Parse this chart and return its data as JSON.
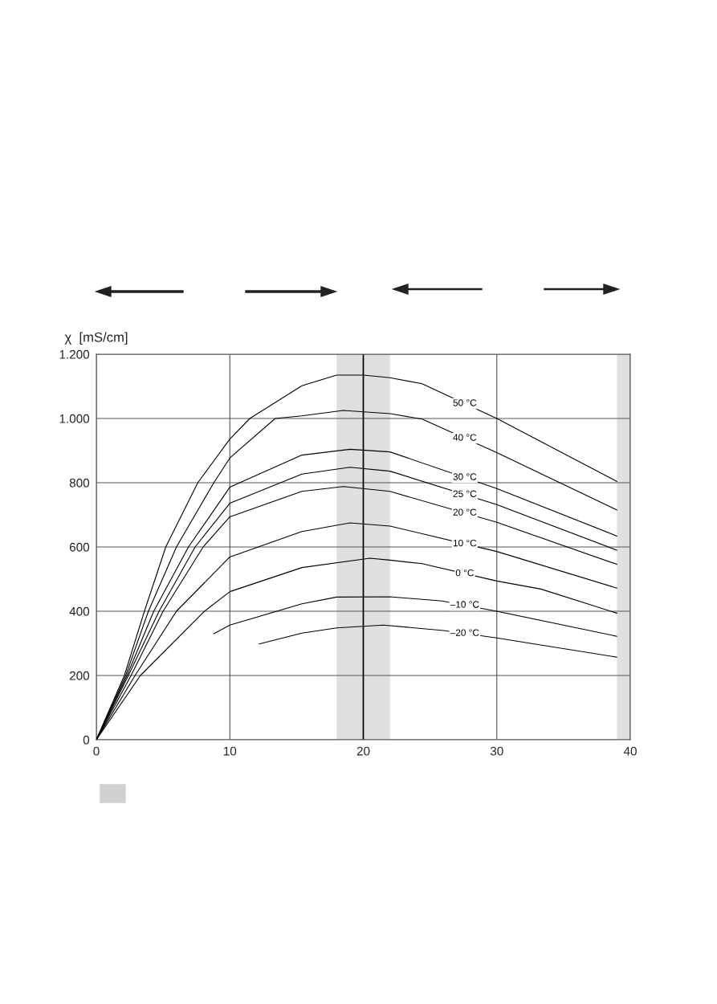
{
  "chart_data": {
    "type": "line",
    "ylabel": "χ  [mS/cm]",
    "xlim": [
      0,
      40
    ],
    "xticks": [
      0,
      10,
      20,
      30,
      40
    ],
    "ylim": [
      0,
      1200
    ],
    "yticks": [
      0,
      200,
      400,
      600,
      800,
      {
        "value": 1000,
        "label": "1.000"
      },
      {
        "value": 1200,
        "label": "1.200"
      }
    ],
    "grid": true,
    "line_style": "solid",
    "marker": "none",
    "bands": [
      {
        "axis": "x",
        "from": 18,
        "to": 22,
        "color": "#e0e0e0"
      },
      {
        "axis": "x",
        "from": 39,
        "to": 40,
        "color": "#e0e0e0"
      }
    ],
    "ref_lines": [
      {
        "axis": "x",
        "value": 20,
        "color": "#000000"
      }
    ],
    "series": [
      {
        "name": "50 °C",
        "color": "#000000",
        "x": [
          0,
          2.1,
          3.6,
          5.2,
          7.6,
          10,
          11.5,
          15.4,
          18,
          20,
          22,
          24.4,
          30,
          39
        ],
        "values": [
          0,
          200,
          400,
          600,
          800,
          936,
          1000,
          1102,
          1135,
          1135,
          1127,
          1108,
          1000,
          804
        ]
      },
      {
        "name": "40 °C",
        "color": "#000000",
        "x": [
          0,
          2.2,
          3.9,
          6.0,
          8.8,
          10,
          13.4,
          15.4,
          18.5,
          22,
          24.4,
          30,
          39
        ],
        "values": [
          0,
          200,
          400,
          600,
          800,
          877,
          1000,
          1008,
          1025,
          1015,
          998,
          894,
          715
        ]
      },
      {
        "name": "30 °C",
        "color": "#000000",
        "x": [
          0,
          2.3,
          4.3,
          6.9,
          10,
          15.4,
          19,
          22,
          30,
          39
        ],
        "values": [
          0,
          200,
          400,
          600,
          786,
          886,
          904,
          896,
          782,
          634
        ]
      },
      {
        "name": "25 °C",
        "color": "#000000",
        "x": [
          0,
          2.4,
          4.7,
          7.4,
          10,
          15.4,
          19,
          22,
          30,
          39
        ],
        "values": [
          0,
          200,
          400,
          600,
          736,
          827,
          848,
          836,
          732,
          590
        ]
      },
      {
        "name": "20 °C",
        "color": "#000000",
        "x": [
          0,
          2.6,
          5.0,
          8.0,
          10,
          15.4,
          18.5,
          22,
          30,
          39
        ],
        "values": [
          0,
          200,
          400,
          600,
          694,
          773,
          788,
          773,
          677,
          546
        ]
      },
      {
        "name": "10 °C",
        "color": "#000000",
        "x": [
          0,
          2.9,
          6.0,
          10,
          15.4,
          19,
          22,
          30,
          39
        ],
        "values": [
          0,
          200,
          400,
          569,
          648,
          675,
          665,
          586,
          472
        ]
      },
      {
        "name": "0 °C",
        "color": "#000000",
        "x": [
          0,
          3.3,
          8.1,
          10,
          15.4,
          20.5,
          22,
          24.4,
          30,
          33.3,
          39
        ],
        "values": [
          0,
          200,
          400,
          461,
          536,
          565,
          559,
          548,
          494,
          469,
          394
        ]
      },
      {
        "name": "–10 °C",
        "color": "#000000",
        "x": [
          8.8,
          10,
          15.4,
          18,
          22,
          25.9,
          30,
          39
        ],
        "values": [
          330,
          357,
          423,
          444,
          445,
          432,
          400,
          322
        ]
      },
      {
        "name": "–20 °C",
        "color": "#000000",
        "x": [
          12.2,
          15.4,
          18,
          20,
          21.5,
          26,
          30,
          39
        ],
        "values": [
          298,
          332,
          348,
          353,
          357,
          340,
          317,
          257
        ]
      }
    ]
  }
}
